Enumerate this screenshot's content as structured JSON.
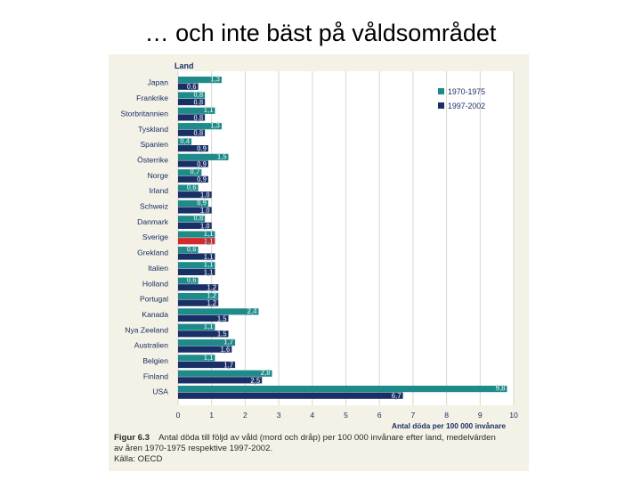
{
  "slide": {
    "title": "… och inte bäst på våldsområdet"
  },
  "chart_data": {
    "type": "bar",
    "orientation": "horizontal",
    "ylabel": "Land",
    "xlabel": "Antal döda per 100 000 invånare",
    "xlim": [
      0,
      10
    ],
    "xticks": [
      0,
      1,
      2,
      3,
      4,
      5,
      6,
      7,
      8,
      9,
      10
    ],
    "grid": true,
    "legend_position": "top-right",
    "categories": [
      "Japan",
      "Frankrike",
      "Storbritannien",
      "Tyskland",
      "Spanien",
      "Österrike",
      "Norge",
      "Irland",
      "Schweiz",
      "Danmark",
      "Sverige",
      "Grekland",
      "Italien",
      "Holland",
      "Portugal",
      "Kanada",
      "Nya Zeeland",
      "Australien",
      "Belgien",
      "Finland",
      "USA"
    ],
    "series": [
      {
        "name": "1970-1975",
        "color": "#1f8a8a",
        "values": [
          1.3,
          0.8,
          1.1,
          1.3,
          0.4,
          1.5,
          0.7,
          0.6,
          0.9,
          0.8,
          1.1,
          0.6,
          1.1,
          0.6,
          1.2,
          2.4,
          1.1,
          1.7,
          1.1,
          2.8,
          9.8
        ]
      },
      {
        "name": "1997-2002",
        "color": "#1a2f66",
        "values": [
          0.6,
          0.8,
          0.8,
          0.8,
          0.9,
          0.9,
          0.9,
          1.0,
          1.0,
          1.0,
          1.1,
          1.1,
          1.1,
          1.2,
          1.2,
          1.5,
          1.5,
          1.6,
          1.7,
          2.5,
          6.7
        ]
      }
    ],
    "highlight": {
      "category": "Sverige",
      "series": "1997-2002",
      "color": "#d42a2a"
    },
    "value_labels": [
      [
        "1,3",
        "0,6"
      ],
      [
        "0,8",
        "0,8"
      ],
      [
        "1,1",
        "0,8"
      ],
      [
        "1,3",
        "0,8"
      ],
      [
        "0,4",
        "0,9"
      ],
      [
        "1,5",
        "0,9"
      ],
      [
        "0,7",
        "0,9"
      ],
      [
        "0,6",
        "1,0"
      ],
      [
        "0,9",
        "1,0"
      ],
      [
        "0,8",
        "1,0"
      ],
      [
        "1,1",
        "1,1"
      ],
      [
        "0,6",
        "1,1"
      ],
      [
        "1,1",
        "1,1"
      ],
      [
        "0,6",
        "1,2"
      ],
      [
        "1,2",
        "1,2"
      ],
      [
        "2,4",
        "1,5"
      ],
      [
        "1,1",
        "1,5"
      ],
      [
        "1,7",
        "1,6"
      ],
      [
        "1,1",
        "1,7"
      ],
      [
        "2,8",
        "2,5"
      ],
      [
        "9,8",
        "6,7"
      ]
    ]
  },
  "caption": {
    "label": "Figur 6.3",
    "text": "Antal döda till följd av våld (mord och dråp) per 100 000 invånare efter land, medelvärden av åren 1970-1975 respektive 1997-2002.",
    "source": "Källa: OECD"
  }
}
